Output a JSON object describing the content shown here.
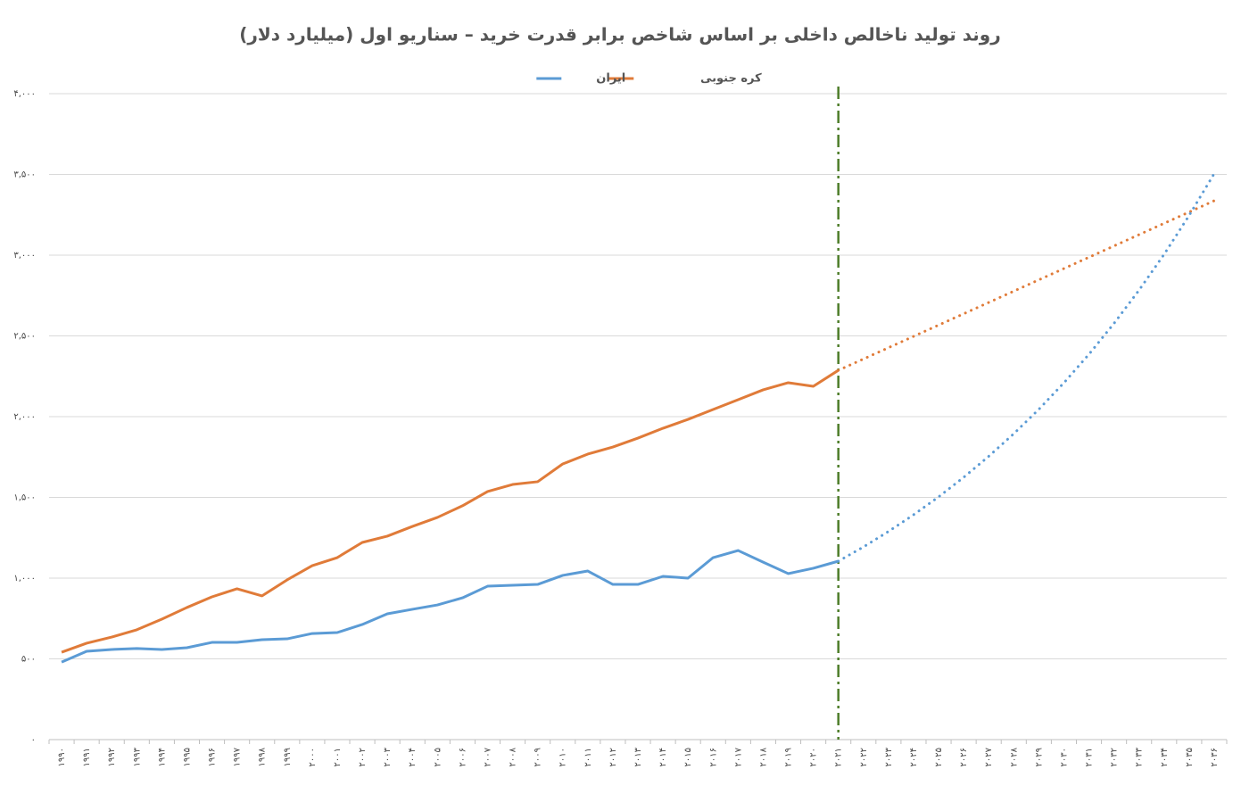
{
  "chart_data": {
    "type": "line",
    "title": "روند تولید ناخالص داخلی بر اساس شاخص برابر قدرت خرید – سناریو اول (میلیارد دلار)",
    "categories": [
      "۱۹۹۰",
      "۱۹۹۱",
      "۱۹۹۲",
      "۱۹۹۳",
      "۱۹۹۴",
      "۱۹۹۵",
      "۱۹۹۶",
      "۱۹۹۷",
      "۱۹۹۸",
      "۱۹۹۹",
      "۲۰۰۰",
      "۲۰۰۱",
      "۲۰۰۲",
      "۲۰۰۳",
      "۲۰۰۴",
      "۲۰۰۵",
      "۲۰۰۶",
      "۲۰۰۷",
      "۲۰۰۸",
      "۲۰۰۹",
      "۲۰۱۰",
      "۲۰۱۱",
      "۲۰۱۲",
      "۲۰۱۳",
      "۲۰۱۴",
      "۲۰۱۵",
      "۲۰۱۶",
      "۲۰۱۷",
      "۲۰۱۸",
      "۲۰۱۹",
      "۲۰۲۰",
      "۲۰۲۱",
      "۲۰۲۲",
      "۲۰۲۳",
      "۲۰۲۴",
      "۲۰۲۵",
      "۲۰۲۶",
      "۲۰۲۷",
      "۲۰۲۸",
      "۲۰۲۹",
      "۲۰۳۰",
      "۲۰۳۱",
      "۲۰۳۲",
      "۲۰۳۳",
      "۲۰۳۴",
      "۲۰۳۵",
      "۲۰۳۶"
    ],
    "series": [
      {
        "name": "کره جنوبی",
        "color": "#e07b39",
        "values": [
          541,
          597,
          635,
          680,
          746,
          818,
          884,
          934,
          890,
          989,
          1077,
          1127,
          1221,
          1260,
          1320,
          1376,
          1448,
          1536,
          1580,
          1597,
          1707,
          1768,
          1812,
          1867,
          1928,
          1983,
          2044,
          2105,
          2166,
          2210,
          2188,
          2287,
          2357,
          2427,
          2497,
          2567,
          2637,
          2707,
          2777,
          2847,
          2917,
          2987,
          3057,
          3127,
          3197,
          3267,
          3337
        ]
      },
      {
        "name": "ایران",
        "color": "#5b9bd5",
        "values": [
          480,
          547,
          558,
          564,
          558,
          569,
          602,
          602,
          619,
          624,
          657,
          663,
          713,
          779,
          807,
          834,
          878,
          950,
          956,
          961,
          1017,
          1044,
          961,
          961,
          1011,
          1000,
          1127,
          1171,
          1099,
          1028,
          1061,
          1105,
          1193,
          1289,
          1392,
          1503,
          1624,
          1754,
          1894,
          2045,
          2209,
          2386,
          2577,
          2783,
          3005,
          3246,
          3505
        ]
      }
    ],
    "projection_from": "۲۰۲۱",
    "ylim": [
      0,
      4000
    ],
    "yticks": [
      {
        "value": 0,
        "label": "۰"
      },
      {
        "value": 500,
        "label": "۵۰۰"
      },
      {
        "value": 1000,
        "label": "۱,۰۰۰"
      },
      {
        "value": 1500,
        "label": "۱,۵۰۰"
      },
      {
        "value": 2000,
        "label": "۲,۰۰۰"
      },
      {
        "value": 2500,
        "label": "۲,۵۰۰"
      },
      {
        "value": 3000,
        "label": "۳,۰۰۰"
      },
      {
        "value": 3500,
        "label": "۳,۵۰۰"
      },
      {
        "value": 4000,
        "label": "۴,۰۰۰"
      }
    ],
    "grid": true
  }
}
